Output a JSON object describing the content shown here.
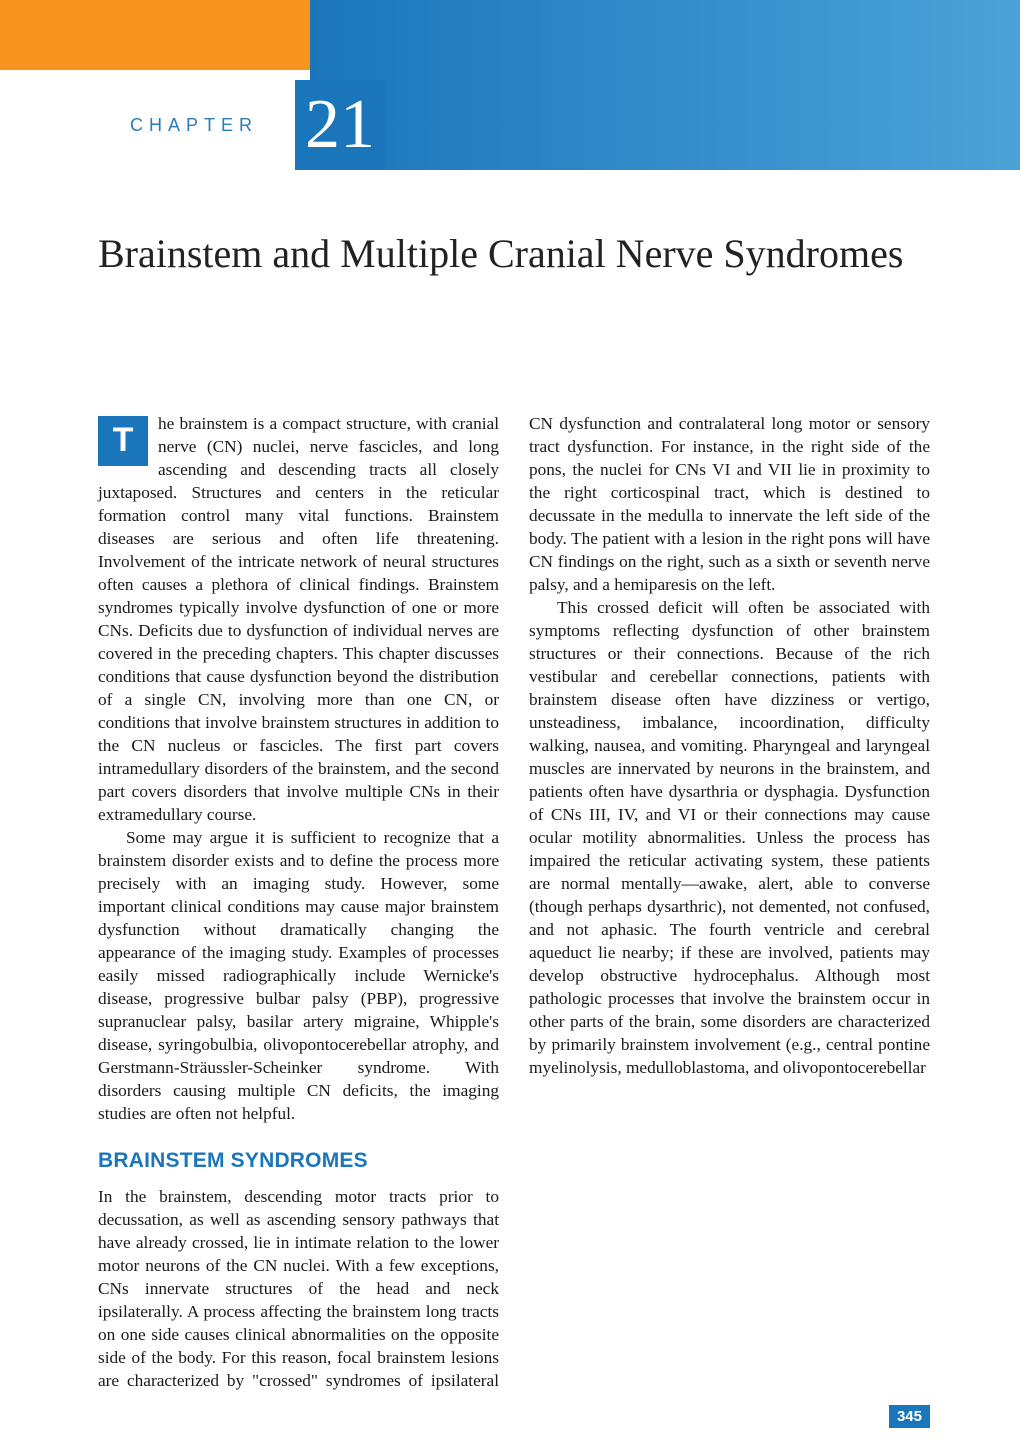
{
  "header": {
    "chapter_label": "CHAPTER",
    "chapter_number": "21",
    "orange_color": "#f7941e",
    "blue_gradient_start": "#1b75bb",
    "blue_gradient_end": "#4ba3d8",
    "label_color": "#2a7cb8"
  },
  "title": "Brainstem and Multiple Cranial Nerve Syndromes",
  "body": {
    "drop_cap_letter": "T",
    "para1": "he brainstem is a compact structure, with cranial nerve (CN) nuclei, nerve fascicles, and long ascending and descending tracts all closely juxtaposed. Structures and centers in the reticular formation control many vital functions. Brainstem diseases are serious and often life threatening. Involvement of the intricate network of neural structures often causes a plethora of clinical findings. Brainstem syndromes typically involve dysfunction of one or more CNs. Deficits due to dysfunction of individual nerves are covered in the preceding chapters. This chapter discusses conditions that cause dysfunction beyond the distribution of a single CN, involving more than one CN, or conditions that involve brainstem structures in addition to the CN nucleus or fascicles. The first part covers intramedullary disorders of the brainstem, and the second part covers disorders that involve multiple CNs in their extramedullary course.",
    "para2": "Some may argue it is sufficient to recognize that a brainstem disorder exists and to define the process more precisely with an imaging study. However, some important clinical conditions may cause major brainstem dysfunction without dramatically changing the appearance of the imaging study. Examples of processes easily missed radiographically include Wernicke's disease, progressive bulbar palsy (PBP), progressive supranuclear palsy, basilar artery migraine, Whipple's disease, syringobulbia, olivopontocerebellar atrophy, and Gerstmann-Sträussler-Scheinker syndrome. With disorders causing multiple CN deficits, the imaging studies are often not helpful.",
    "section_heading": "BRAINSTEM SYNDROMES",
    "para3": "In the brainstem, descending motor tracts prior to decussation, as well as ascending sensory pathways that have already crossed, lie in intimate relation to the lower motor neurons of the CN nuclei. With a few exceptions, CNs innervate structures of the head and neck ipsilaterally. A process affecting the brainstem long tracts on one side causes clinical abnormalities on the opposite side of the body. For this reason, focal brainstem lesions are characterized by \"crossed\" syndromes of ipsilateral CN dysfunction and contralateral long motor or sensory tract dysfunction. For instance, in the right side of the pons, the nuclei for CNs VI and VII lie in proximity to the right corticospinal tract, which is destined to decussate in the medulla to innervate the left side of the body. The patient with a lesion in the right pons will have CN findings on the right, such as a sixth or seventh nerve palsy, and a hemiparesis on the left.",
    "para4": "This crossed deficit will often be associated with symptoms reflecting dysfunction of other brainstem structures or their connections. Because of the rich vestibular and cerebellar connections, patients with brainstem disease often have dizziness or vertigo, unsteadiness, imbalance, incoordination, difficulty walking, nausea, and vomiting. Pharyngeal and laryngeal muscles are innervated by neurons in the brainstem, and patients often have dysarthria or dysphagia. Dysfunction of CNs III, IV, and VI or their connections may cause ocular motility abnormalities. Unless the process has impaired the reticular activating system, these patients are normal mentally—awake, alert, able to converse (though perhaps dysarthric), not demented, not confused, and not aphasic. The fourth ventricle and cerebral aqueduct lie nearby; if these are involved, patients may develop obstructive hydrocephalus. Although most pathologic processes that involve the brainstem occur in other parts of the brain, some disorders are characterized by primarily brainstem involvement (e.g., central pontine myelinolysis, medulloblastoma, and olivopontocerebellar"
  },
  "page_number": "345",
  "colors": {
    "heading_blue": "#1b75bb",
    "body_text": "#1a1a1a",
    "background": "#ffffff"
  },
  "typography": {
    "title_fontsize": 40,
    "body_fontsize": 17.3,
    "heading_fontsize": 21,
    "chapter_number_fontsize": 70,
    "chapter_label_fontsize": 18
  }
}
